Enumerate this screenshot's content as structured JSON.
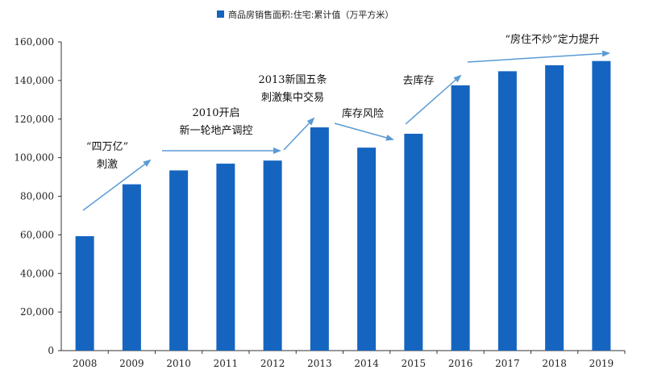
{
  "chart_data": {
    "type": "bar",
    "title": "",
    "xlabel": "",
    "ylabel": "",
    "legend": "商品房销售面积:住宅:累计值（万平方米）",
    "legend_position": "top-right",
    "categories": [
      "2008",
      "2009",
      "2010",
      "2011",
      "2012",
      "2013",
      "2014",
      "2015",
      "2016",
      "2017",
      "2018",
      "2019"
    ],
    "values": [
      59300,
      86200,
      93400,
      96900,
      98500,
      115700,
      105200,
      112400,
      137500,
      144800,
      147900,
      150100
    ],
    "ylim": [
      0,
      160000
    ],
    "yticks": [
      0,
      20000,
      40000,
      60000,
      80000,
      100000,
      120000,
      140000,
      160000
    ],
    "ytick_labels": [
      "0",
      "20,000",
      "40,000",
      "60,000",
      "80,000",
      "100,000",
      "120,000",
      "140,000",
      "160,000"
    ],
    "bar_color": "#1565C0",
    "annotations": [
      {
        "lines": [
          "“四万亿”",
          "刺激"
        ]
      },
      {
        "lines": [
          "2010开启",
          "新一轮地产调控"
        ]
      },
      {
        "lines": [
          "2013新国五条",
          "刺激集中交易"
        ]
      },
      {
        "lines": [
          "库存风险"
        ]
      },
      {
        "lines": [
          "去库存"
        ]
      },
      {
        "lines": [
          "“房住不炒”定力提升"
        ]
      }
    ],
    "arrow_color": "#5B9BD5"
  }
}
